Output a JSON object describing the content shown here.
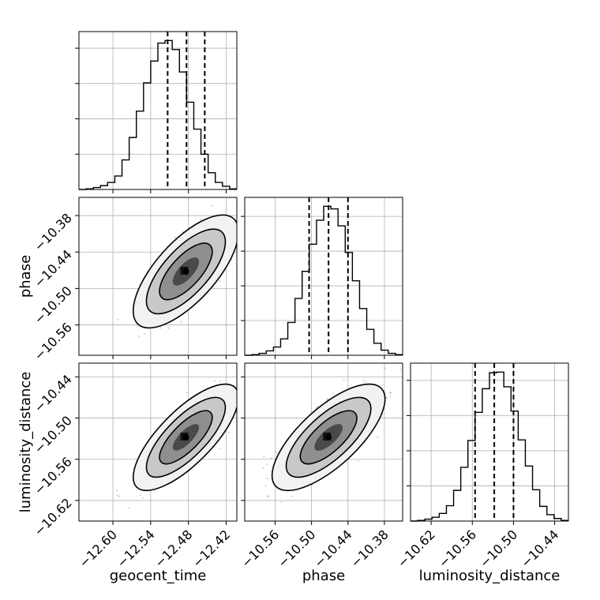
{
  "chart_data": {
    "type": "corner",
    "parameters": [
      {
        "name": "geocent_time",
        "label": "geocent_time",
        "range": [
          -12.654,
          -12.403
        ],
        "ticks": [
          -12.6,
          -12.54,
          -12.48,
          -12.42
        ],
        "tick_labels": [
          "−12.60",
          "−12.54",
          "−12.48",
          "−12.42"
        ],
        "mean": -12.484,
        "std": 0.027,
        "quantiles": [
          -12.513,
          -12.483,
          -12.454
        ]
      },
      {
        "name": "phase",
        "label": "phase",
        "range": [
          -10.61,
          -10.35
        ],
        "ticks": [
          -10.56,
          -10.5,
          -10.44,
          -10.38
        ],
        "tick_labels": [
          "−10.56",
          "−10.50",
          "−10.44",
          "−10.38"
        ],
        "mean": -10.472,
        "std": 0.03,
        "quantiles": [
          -10.504,
          -10.472,
          -10.44
        ]
      },
      {
        "name": "luminosity_distance",
        "label": "luminosity_distance",
        "range": [
          -10.65,
          -10.42
        ],
        "ticks": [
          -10.62,
          -10.56,
          -10.5,
          -10.44
        ],
        "tick_labels": [
          "−10.62",
          "−10.56",
          "−10.50",
          "−10.44"
        ],
        "mean": -10.528,
        "std": 0.025,
        "quantiles": [
          -10.556,
          -10.528,
          -10.5
        ]
      }
    ],
    "correlations": {
      "geocent_time|phase": 0.7,
      "geocent_time|luminosity_distance": 0.75,
      "phase|luminosity_distance": 0.72
    },
    "histograms": [
      {
        "parameter": "geocent_time",
        "counts": [
          0,
          1,
          3,
          6,
          11,
          21,
          46,
          81,
          122,
          166,
          200,
          228,
          232,
          218,
          183,
          136,
          94,
          55,
          26,
          11,
          5,
          1
        ]
      },
      {
        "parameter": "phase",
        "counts": [
          0,
          1,
          3,
          7,
          13,
          26,
          52,
          90,
          133,
          176,
          214,
          236,
          232,
          205,
          163,
          118,
          74,
          41,
          19,
          8,
          3,
          1
        ]
      },
      {
        "parameter": "luminosity_distance",
        "counts": [
          0,
          1,
          3,
          6,
          12,
          24,
          48,
          84,
          126,
          170,
          207,
          232,
          233,
          210,
          172,
          127,
          86,
          49,
          23,
          10,
          4,
          1
        ]
      }
    ],
    "contour_levels_sigma": [
      0.5,
      1.0,
      1.5,
      2.0
    ],
    "grid": true
  }
}
